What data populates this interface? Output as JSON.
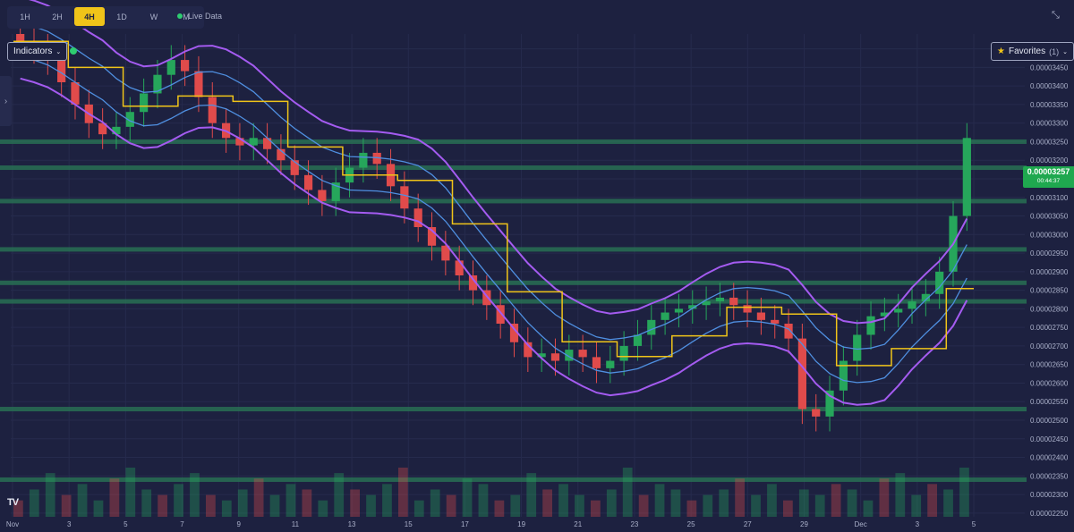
{
  "toolbar": {
    "timeframes": [
      "1H",
      "2H",
      "4H",
      "1D",
      "W",
      "M"
    ],
    "active": "4H",
    "live_label": "Live Data"
  },
  "indicators_label": "Indicators",
  "favorites": {
    "label": "Favorites",
    "count": "(1)"
  },
  "current_price": {
    "value": "0.00003257",
    "countdown": "00:44:37"
  },
  "logo_text": "TV",
  "colors": {
    "background": "#1d2140",
    "up": "#26a65b",
    "down": "#e04b4b",
    "ma_yellow": "#f0c419",
    "band_blue": "#4f8fe0",
    "band_purple": "#a45bf0",
    "level_zone": "#2a7a55"
  },
  "chart_data": {
    "type": "candlestick",
    "y_axis": {
      "ticks": [
        "0.00003500",
        "0.00003450",
        "0.00003400",
        "0.00003350",
        "0.00003300",
        "0.00003250",
        "0.00003200",
        "0.00003150",
        "0.00003100",
        "0.00003050",
        "0.00003000",
        "0.00002950",
        "0.00002900",
        "0.00002850",
        "0.00002800",
        "0.00002750",
        "0.00002700",
        "0.00002650",
        "0.00002600",
        "0.00002550",
        "0.00002500",
        "0.00002450",
        "0.00002400",
        "0.00002350",
        "0.00002300",
        "0.00002250"
      ],
      "range": [
        2.24e-05,
        3.54e-05
      ]
    },
    "x_axis": {
      "ticks": [
        "Nov",
        "3",
        "5",
        "7",
        "9",
        "11",
        "13",
        "15",
        "17",
        "19",
        "21",
        "23",
        "25",
        "27",
        "29",
        "Dec",
        "3",
        "5"
      ],
      "range": [
        "Nov 1",
        "Dec 5"
      ]
    },
    "horizontal_levels": [
      3.25e-05,
      3.18e-05,
      3.09e-05,
      2.96e-05,
      2.87e-05,
      2.82e-05,
      2.53e-05,
      2.34e-05
    ],
    "close_series": [
      3.52e-05,
      3.5e-05,
      3.47e-05,
      3.41e-05,
      3.35e-05,
      3.3e-05,
      3.27e-05,
      3.29e-05,
      3.33e-05,
      3.38e-05,
      3.43e-05,
      3.47e-05,
      3.44e-05,
      3.37e-05,
      3.3e-05,
      3.26e-05,
      3.24e-05,
      3.26e-05,
      3.23e-05,
      3.2e-05,
      3.16e-05,
      3.12e-05,
      3.09e-05,
      3.14e-05,
      3.18e-05,
      3.22e-05,
      3.19e-05,
      3.13e-05,
      3.07e-05,
      3.02e-05,
      2.97e-05,
      2.93e-05,
      2.89e-05,
      2.85e-05,
      2.81e-05,
      2.76e-05,
      2.71e-05,
      2.67e-05,
      2.68e-05,
      2.66e-05,
      2.69e-05,
      2.67e-05,
      2.64e-05,
      2.66e-05,
      2.7e-05,
      2.73e-05,
      2.77e-05,
      2.79e-05,
      2.8e-05,
      2.81e-05,
      2.82e-05,
      2.83e-05,
      2.81e-05,
      2.79e-05,
      2.77e-05,
      2.76e-05,
      2.72e-05,
      2.53e-05,
      2.51e-05,
      2.58e-05,
      2.66e-05,
      2.73e-05,
      2.78e-05,
      2.79e-05,
      2.8e-05,
      2.82e-05,
      2.84e-05,
      2.9e-05,
      3.05e-05,
      3.26e-05
    ],
    "volume_series": [
      3,
      5,
      8,
      4,
      6,
      3,
      7,
      9,
      5,
      4,
      6,
      8,
      4,
      3,
      5,
      7,
      4,
      6,
      5,
      3,
      8,
      5,
      4,
      6,
      9,
      3,
      5,
      4,
      7,
      6,
      3,
      4,
      8,
      5,
      6,
      4,
      3,
      5,
      9,
      4,
      6,
      5,
      3,
      4,
      5,
      7,
      4,
      6,
      3,
      5,
      4,
      6,
      5,
      3,
      7,
      8,
      4,
      6,
      5,
      9
    ]
  }
}
